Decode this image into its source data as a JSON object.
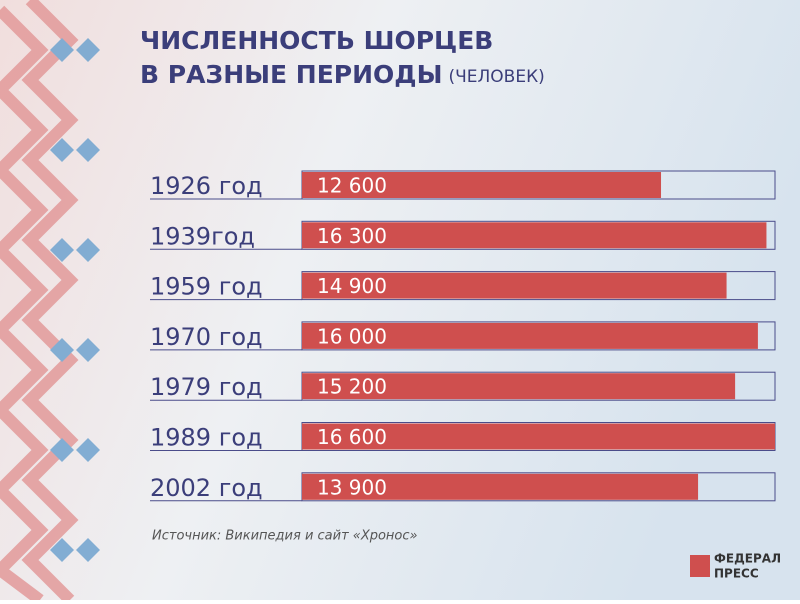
{
  "chart_data": {
    "type": "bar",
    "orientation": "horizontal",
    "title": "ЧИСЛЕННОСТЬ ШОРЦЕВ",
    "subtitle": "В РАЗНЫЕ ПЕРИОДЫ",
    "unit_note": "(ЧЕЛОВЕК)",
    "categories": [
      "1926 год",
      "1939год",
      "1959 год",
      "1970 год",
      "1979 год",
      "1989 год",
      "2002 год"
    ],
    "values": [
      12600,
      16300,
      14900,
      16000,
      15200,
      16600,
      13900
    ],
    "value_labels": [
      "12 600",
      "16 300",
      "14 900",
      "16 000",
      "15 200",
      "16 600",
      "13 900"
    ],
    "color": "#cf4f4e",
    "xlim": [
      0,
      16600
    ],
    "source": "Источник: Википедия и сайт «Хронос»",
    "logo": [
      "ФЕДЕРАЛ",
      "ПРЕСС"
    ]
  }
}
